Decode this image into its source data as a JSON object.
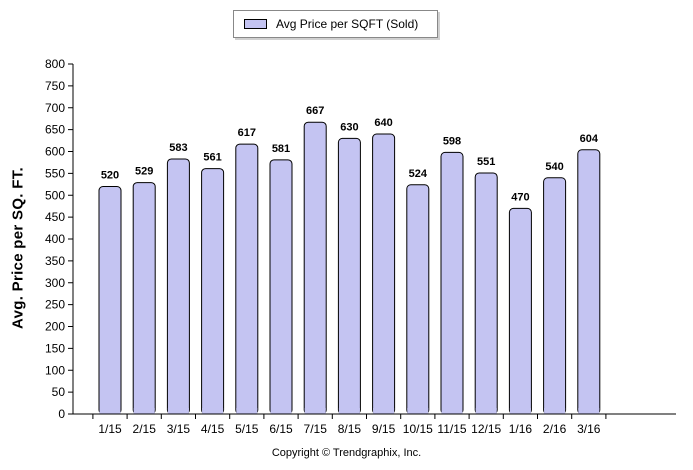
{
  "legend": {
    "label": "Avg Price per SQFT (Sold)"
  },
  "copyright": "Copyright © Trendgraphix, Inc.",
  "colors": {
    "bar_fill": "#c4c4f2",
    "bar_stroke": "#000000",
    "axis": "#000000"
  },
  "chart_data": {
    "type": "bar",
    "categories": [
      "1/15",
      "2/15",
      "3/15",
      "4/15",
      "5/15",
      "6/15",
      "7/15",
      "8/15",
      "9/15",
      "10/15",
      "11/15",
      "12/15",
      "1/16",
      "2/16",
      "3/16"
    ],
    "series": [
      {
        "name": "Avg Price per SQFT (Sold)",
        "values": [
          520,
          529,
          583,
          561,
          617,
          581,
          667,
          630,
          640,
          524,
          598,
          551,
          470,
          540,
          604
        ]
      }
    ],
    "title": "",
    "xlabel": "",
    "ylabel": "Avg. Price per SQ. FT.",
    "ylim": [
      0,
      800
    ],
    "yticks": [
      0,
      50,
      100,
      150,
      200,
      250,
      300,
      350,
      400,
      450,
      500,
      550,
      600,
      650,
      700,
      750,
      800
    ],
    "grid": false,
    "legend_position": "top-center",
    "data_labels": true
  }
}
